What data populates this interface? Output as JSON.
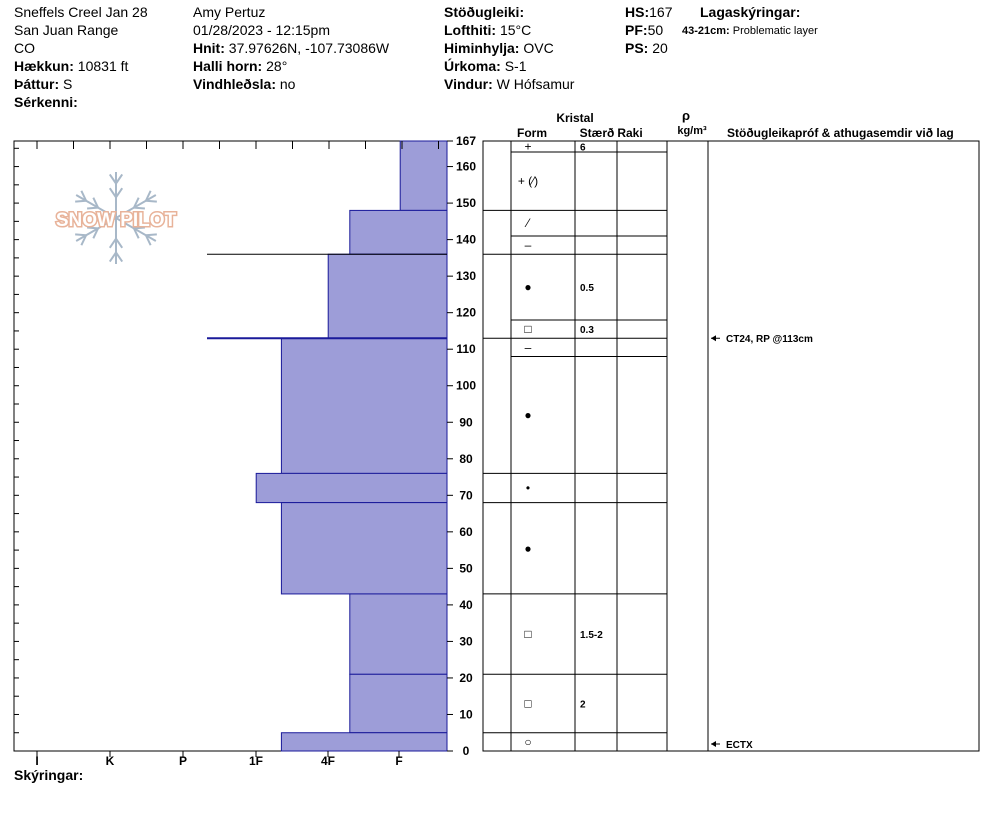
{
  "header": {
    "location": "Sneffels Creel Jan 28",
    "range": "San Juan Range",
    "state": "CO",
    "elevation_label": "Hækkun:",
    "elevation": "10831 ft",
    "aspect_label": "Þáttur:",
    "aspect": "S",
    "features_label": "Sérkenni:",
    "observer": "Amy  Pertuz",
    "datetime": "01/28/2023 - 12:15pm",
    "coords_label": "Hnit:",
    "coords": "37.97626N, -107.73086W",
    "slope_label": "Halli horn:",
    "slope": "28°",
    "wind_loading_label": "Vindhleðsla:",
    "wind_loading": "no",
    "stability_label": "Stöðugleiki:",
    "temp_label": "Lofthiti:",
    "temp": "15°C",
    "sky_label": "Himinhylja:",
    "sky": "OVC",
    "precip_label": "Úrkoma:",
    "precip": "S-1",
    "wind_label": "Vindur:",
    "wind": "W Hófsamur",
    "hs_label": "HS:",
    "hs": "167",
    "pf_label": "PF:",
    "pf": "50",
    "ps_label": "PS:",
    "ps": "20",
    "layer_notes_label": "Lagaskýringar:",
    "layer_notes_range": "43-21cm:",
    "layer_notes_text": "Problematic layer"
  },
  "logo": {
    "text": "SNOW PILOT"
  },
  "columns": {
    "crystal": "Kristal",
    "form": "Form",
    "size": "Stærð",
    "moisture": "Raki",
    "rho": "ρ",
    "density_unit": "kg/m³",
    "tests": "Stöðugleikapróf & athugasemdir við lag"
  },
  "footer": {
    "legend_label": "Skýringar:"
  },
  "chart_data": {
    "type": "snow-profile",
    "hardness_scale": [
      "I",
      "K",
      "P",
      "1F",
      "4F",
      "F"
    ],
    "height_ticks": [
      0,
      10,
      20,
      30,
      40,
      50,
      60,
      70,
      80,
      90,
      100,
      110,
      120,
      130,
      140,
      150,
      160,
      167
    ],
    "ylim": [
      0,
      167
    ],
    "layers": [
      {
        "bottom": 148,
        "top": 167,
        "hardness": 0.65,
        "form": "+",
        "size": "6"
      },
      {
        "bottom": 136,
        "top": 148,
        "hardness": 1.35,
        "form": "+ (⁄)",
        "size": ""
      },
      {
        "bottom": 113,
        "top": 136,
        "hardness": 1.65,
        "form": "⁄",
        "size": ""
      },
      {
        "bottom": 76,
        "top": 113,
        "hardness": 2.3,
        "form": "–",
        "size": "0.5"
      },
      {
        "bottom": 68,
        "top": 76,
        "hardness": 2.65,
        "form": "●",
        "size": "0.3"
      },
      {
        "bottom": 43,
        "top": 68,
        "hardness": 2.3,
        "form": "–",
        "size": ""
      },
      {
        "bottom": 21,
        "top": 43,
        "hardness": 1.35,
        "form": "●",
        "size": ""
      },
      {
        "bottom": 5,
        "top": 21,
        "hardness": 1.35,
        "form": "•",
        "size": ""
      },
      {
        "bottom": 0,
        "top": 5,
        "hardness": 2.3,
        "form": "●",
        "size": ""
      }
    ],
    "structure_rows": [
      {
        "bottom": 164,
        "top": 167,
        "form": "+",
        "size": "6"
      },
      {
        "bottom": 148,
        "top": 164,
        "form": "+ (⁄)",
        "size": ""
      },
      {
        "bottom": 141,
        "top": 148,
        "form": "⁄",
        "size": ""
      },
      {
        "bottom": 136,
        "top": 141,
        "form": "–",
        "size": ""
      },
      {
        "bottom": 118,
        "top": 136,
        "form": "●",
        "size": "0.5"
      },
      {
        "bottom": 113,
        "top": 118,
        "form": "□",
        "size": "0.3"
      },
      {
        "bottom": 108,
        "top": 113,
        "form": "–",
        "size": ""
      },
      {
        "bottom": 76,
        "top": 108,
        "form": "●",
        "size": ""
      },
      {
        "bottom": 68,
        "top": 76,
        "form": "•",
        "size": ""
      },
      {
        "bottom": 43,
        "top": 68,
        "form": "●",
        "size": ""
      },
      {
        "bottom": 21,
        "top": 43,
        "form": "□",
        "size": "1.5-2"
      },
      {
        "bottom": 5,
        "top": 21,
        "form": "□",
        "size": "2"
      },
      {
        "bottom": 0,
        "top": 5,
        "form": "○",
        "size": ""
      }
    ],
    "test_lines": [
      113,
      136
    ],
    "tests": [
      {
        "height": 113,
        "label": "CT24, RP @113cm"
      },
      {
        "height": 0,
        "label": "ECTX"
      }
    ]
  }
}
